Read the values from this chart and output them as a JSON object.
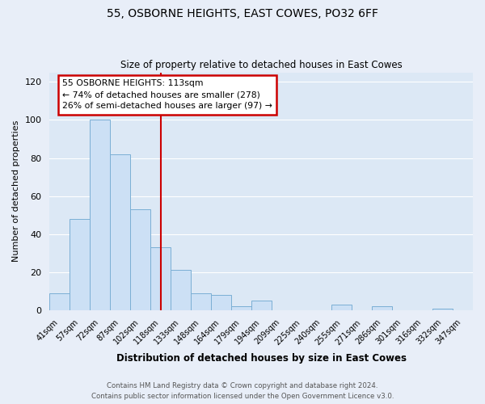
{
  "title": "55, OSBORNE HEIGHTS, EAST COWES, PO32 6FF",
  "subtitle": "Size of property relative to detached houses in East Cowes",
  "xlabel": "Distribution of detached houses by size in East Cowes",
  "ylabel": "Number of detached properties",
  "bar_labels": [
    "41sqm",
    "57sqm",
    "72sqm",
    "87sqm",
    "102sqm",
    "118sqm",
    "133sqm",
    "148sqm",
    "164sqm",
    "179sqm",
    "194sqm",
    "209sqm",
    "225sqm",
    "240sqm",
    "255sqm",
    "271sqm",
    "286sqm",
    "301sqm",
    "316sqm",
    "332sqm",
    "347sqm"
  ],
  "bar_values": [
    9,
    48,
    100,
    82,
    53,
    33,
    21,
    9,
    8,
    2,
    5,
    0,
    0,
    0,
    3,
    0,
    2,
    0,
    0,
    1,
    0
  ],
  "bar_color": "#cce0f5",
  "bar_edge_color": "#7bafd4",
  "ylim": [
    0,
    125
  ],
  "yticks": [
    0,
    20,
    40,
    60,
    80,
    100,
    120
  ],
  "annotation_title": "55 OSBORNE HEIGHTS: 113sqm",
  "annotation_line1": "← 74% of detached houses are smaller (278)",
  "annotation_line2": "26% of semi-detached houses are larger (97) →",
  "annotation_box_facecolor": "#ffffff",
  "annotation_box_edgecolor": "#cc0000",
  "vline_color": "#cc0000",
  "footer_line1": "Contains HM Land Registry data © Crown copyright and database right 2024.",
  "footer_line2": "Contains public sector information licensed under the Open Government Licence v3.0.",
  "background_color": "#e8eef8",
  "plot_bg_color": "#dce8f5",
  "grid_color": "#ffffff",
  "figsize": [
    6.0,
    5.0
  ],
  "dpi": 100
}
